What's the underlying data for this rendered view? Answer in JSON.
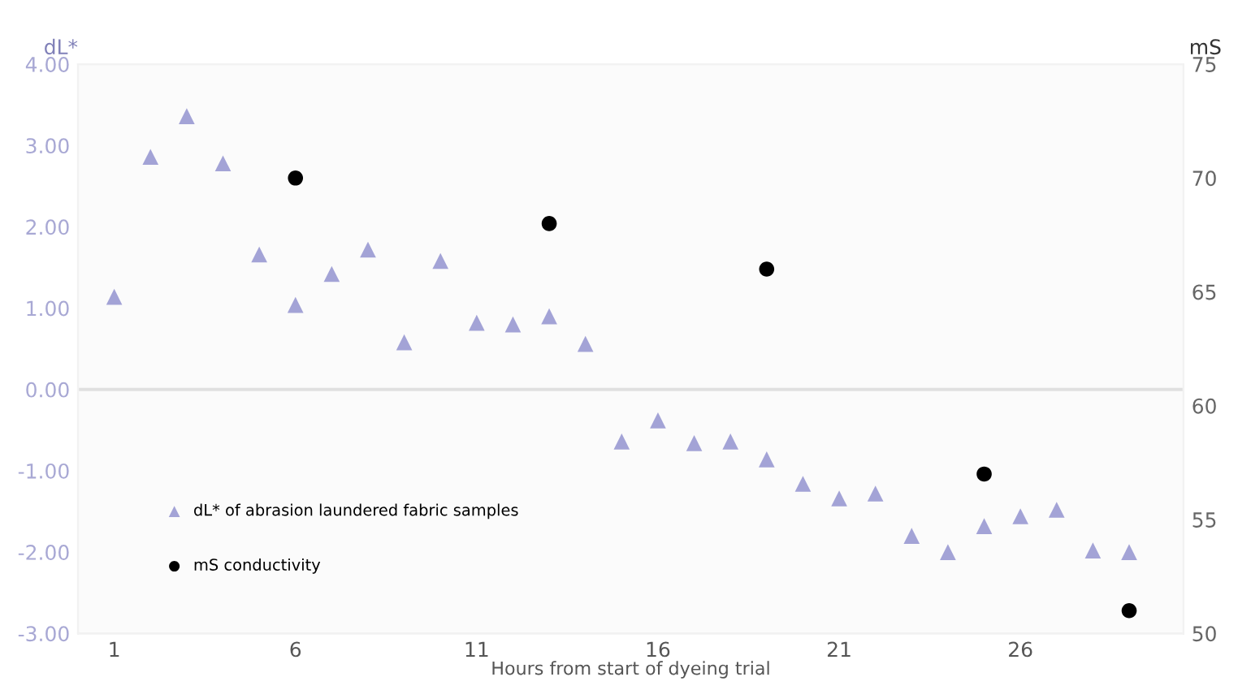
{
  "chart_data": {
    "type": "scatter",
    "xlabel": "Hours from start of dyeing trial",
    "ylabel": "dL*",
    "y2label": "mS",
    "xlim": [
      0,
      30.5
    ],
    "xticks": [
      1,
      6,
      11,
      16,
      21,
      26
    ],
    "ylim": [
      -3,
      4
    ],
    "yticks": [
      {
        "value": -3,
        "label": "-3.00"
      },
      {
        "value": -2,
        "label": "-2.00"
      },
      {
        "value": -1,
        "label": "-1.00"
      },
      {
        "value": 0,
        "label": "0.00"
      },
      {
        "value": 1,
        "label": "1.00"
      },
      {
        "value": 2,
        "label": "2.00"
      },
      {
        "value": 3,
        "label": "3.00"
      },
      {
        "value": 4,
        "label": "4.00"
      }
    ],
    "y2lim": [
      50,
      75
    ],
    "y2ticks": [
      50,
      55,
      60,
      65,
      70,
      75
    ],
    "ref_lines": [
      {
        "axis": "y",
        "value": 0,
        "label": null,
        "color": "#e0e0e0"
      }
    ],
    "grid": false,
    "legend": "bottom left",
    "series": [
      {
        "name": "dL* of abrasion laundered fabric samples",
        "color": "#a3a3d6",
        "marker": "triangle",
        "x": [
          1,
          2,
          3,
          4,
          5,
          6,
          7,
          8,
          9,
          10,
          11,
          12,
          13,
          14,
          15,
          16,
          17,
          18,
          19,
          20,
          21,
          22,
          23,
          24,
          25,
          26,
          27,
          28,
          29
        ],
        "values": [
          1.14,
          2.86,
          3.36,
          2.78,
          1.66,
          1.04,
          1.42,
          1.72,
          0.58,
          1.58,
          0.82,
          0.8,
          0.9,
          0.56,
          -0.64,
          -0.38,
          -0.66,
          -0.64,
          -0.86,
          -1.16,
          -1.34,
          -1.28,
          -1.8,
          -2.0,
          -1.68,
          -1.56,
          -1.48,
          -1.98,
          -2.0
        ]
      },
      {
        "name": "mS conductivity",
        "color": "#000000",
        "marker": "circle",
        "axis": "y2",
        "x": [
          6,
          13,
          19,
          25,
          29
        ],
        "values": [
          70,
          68,
          66,
          57,
          51
        ]
      }
    ]
  }
}
